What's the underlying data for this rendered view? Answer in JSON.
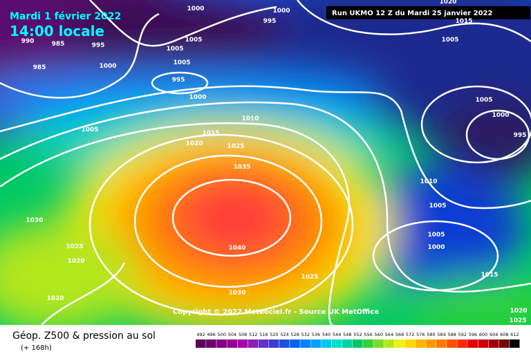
{
  "header": {
    "date": "Mardi 1 février 2022",
    "time": "14:00 locale",
    "run": "Run UKMO 12 Z du Mardi 25 janvier 2022"
  },
  "map": {
    "copyright": "Copyright © 2022 Meteociel.fr - Source UK MetOffice",
    "isobar_labels": [
      1000,
      1000,
      995,
      990,
      985,
      995,
      985,
      1000,
      1005,
      1005,
      1005,
      995,
      1000,
      1005,
      1015,
      1010,
      1020,
      1025,
      1035,
      1030,
      1025,
      1020,
      1040,
      1025,
      1030,
      1020,
      1005,
      1000,
      995,
      1015,
      1005,
      1020,
      1010,
      1005,
      1005,
      1000,
      1015,
      1020,
      1025
    ]
  },
  "legend": {
    "title": "Géop. Z500 & pression au sol",
    "lead": "(+ 168h)",
    "levels": [
      492,
      496,
      500,
      504,
      508,
      512,
      516,
      520,
      524,
      528,
      532,
      536,
      540,
      544,
      548,
      552,
      556,
      560,
      564,
      568,
      572,
      576,
      580,
      584,
      588,
      592,
      596,
      600,
      604,
      608,
      612
    ],
    "colors": [
      "#5a005a",
      "#6e006e",
      "#820082",
      "#960096",
      "#aa00aa",
      "#8c1eb4",
      "#6432c8",
      "#3c3cd2",
      "#1e50dc",
      "#0064f0",
      "#0082ff",
      "#00a0ff",
      "#00c8f0",
      "#00e0d0",
      "#00d2a0",
      "#00c864",
      "#32d232",
      "#78dc28",
      "#b4e61e",
      "#f0f014",
      "#ffd700",
      "#ffb400",
      "#ff9600",
      "#ff7800",
      "#ff5000",
      "#ff2800",
      "#e60000",
      "#c80000",
      "#a00000",
      "#780000",
      "#000000"
    ]
  }
}
